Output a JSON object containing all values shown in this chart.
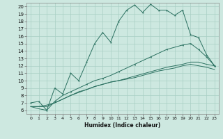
{
  "xlabel": "Humidex (Indice chaleur)",
  "xlim": [
    -0.5,
    23.5
  ],
  "ylim": [
    5.5,
    20.5
  ],
  "xticks": [
    0,
    1,
    2,
    3,
    4,
    5,
    6,
    7,
    8,
    9,
    10,
    11,
    12,
    13,
    14,
    15,
    16,
    17,
    18,
    19,
    20,
    21,
    22,
    23
  ],
  "yticks": [
    6,
    7,
    8,
    9,
    10,
    11,
    12,
    13,
    14,
    15,
    16,
    17,
    18,
    19,
    20
  ],
  "bg_color": "#cde8e0",
  "grid_color": "#a8cfc4",
  "line_color": "#2a7060",
  "line1_y": [
    7.0,
    7.2,
    6.0,
    9.0,
    8.2,
    11.0,
    10.0,
    12.5,
    15.0,
    16.5,
    15.2,
    18.0,
    19.5,
    20.2,
    19.2,
    20.3,
    19.5,
    19.5,
    18.8,
    19.5,
    16.2,
    15.8,
    13.5,
    12.0
  ],
  "line2_y": [
    6.5,
    6.2,
    6.0,
    7.2,
    8.0,
    8.5,
    9.0,
    9.5,
    10.0,
    10.3,
    10.7,
    11.2,
    11.7,
    12.2,
    12.7,
    13.2,
    13.7,
    14.2,
    14.5,
    14.8,
    15.0,
    14.2,
    13.2,
    12.0
  ],
  "line3_y": [
    6.5,
    6.5,
    6.5,
    7.0,
    7.5,
    8.0,
    8.5,
    8.8,
    9.2,
    9.5,
    9.8,
    10.0,
    10.3,
    10.6,
    10.9,
    11.2,
    11.5,
    11.8,
    12.0,
    12.2,
    12.5,
    12.5,
    12.2,
    12.0
  ],
  "line4_y": [
    6.5,
    6.5,
    6.7,
    7.0,
    7.5,
    8.0,
    8.4,
    8.8,
    9.2,
    9.5,
    9.8,
    10.0,
    10.2,
    10.4,
    10.7,
    11.0,
    11.3,
    11.5,
    11.7,
    12.0,
    12.2,
    12.0,
    11.8,
    11.5
  ],
  "line1_markers_x": [
    0,
    1,
    2,
    3,
    4,
    5,
    6,
    7,
    8,
    9,
    10,
    11,
    12,
    13,
    14,
    15,
    16,
    17,
    18,
    19,
    20,
    21,
    22,
    23
  ],
  "line2_markers_x": [
    3,
    5,
    7,
    9,
    11,
    13,
    15,
    17,
    19,
    20,
    21,
    22,
    23
  ],
  "line2_markers_y": [
    7.2,
    8.5,
    9.5,
    10.3,
    11.2,
    12.2,
    13.2,
    14.2,
    14.8,
    15.0,
    14.2,
    13.2,
    12.0
  ]
}
